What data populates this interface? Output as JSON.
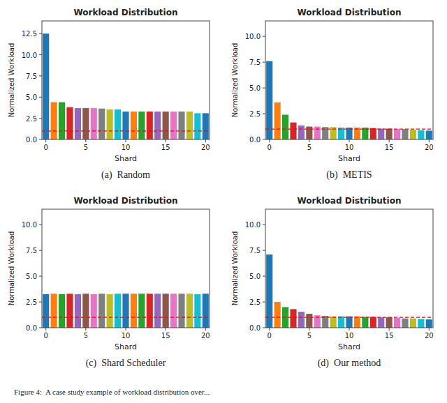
{
  "chart_data": [
    {
      "type": "bar",
      "title": "Workload Distribution",
      "x_label": "Shard",
      "y_label": "Normalized Workload",
      "subtitle": "(a)  Random",
      "categories": [
        "0",
        null,
        null,
        null,
        null,
        "5",
        null,
        null,
        null,
        null,
        "10",
        null,
        null,
        null,
        null,
        "15",
        null,
        null,
        null,
        null,
        "20"
      ],
      "values": [
        12.5,
        4.4,
        4.4,
        3.8,
        3.7,
        3.7,
        3.7,
        3.65,
        3.55,
        3.55,
        3.3,
        3.3,
        3.3,
        3.3,
        3.3,
        3.3,
        3.3,
        3.3,
        3.3,
        3.1,
        3.1
      ],
      "colors": [
        "#1f77b4",
        "#ff7f0e",
        "#2ca02c",
        "#d62728",
        "#9467bd",
        "#8c564b",
        "#e377c2",
        "#7f7f7f",
        "#bcbd22",
        "#17becf",
        "#1f77b4",
        "#ff7f0e",
        "#2ca02c",
        "#d62728",
        "#9467bd",
        "#8c564b",
        "#e377c2",
        "#7f7f7f",
        "#bcbd22",
        "#17becf",
        "#1f77b4"
      ],
      "reference_line": {
        "value": 1.0,
        "color": "#ff0000",
        "line_style": "dashed"
      },
      "ylim": [
        0,
        14.0
      ],
      "yticks": [
        {
          "value": 0.0,
          "label": "0.0"
        },
        2.5,
        {
          "value": 5.0,
          "label": "5.0"
        },
        7.5,
        {
          "value": 10.0,
          "label": "10.0"
        },
        12.5
      ]
    },
    {
      "type": "bar",
      "title": "Workload Distribution",
      "x_label": "Shard",
      "y_label": "Normalized Workload",
      "subtitle": "(b)  METIS",
      "categories": [
        "0",
        null,
        null,
        null,
        null,
        "5",
        null,
        null,
        null,
        null,
        "10",
        null,
        null,
        null,
        null,
        "15",
        null,
        null,
        null,
        null,
        "20"
      ],
      "values": [
        7.6,
        3.6,
        2.4,
        1.65,
        1.35,
        1.25,
        1.25,
        1.2,
        1.2,
        1.15,
        1.15,
        1.15,
        1.15,
        1.1,
        1.05,
        1.05,
        1.0,
        1.0,
        0.95,
        0.9,
        0.85
      ],
      "colors": [
        "#1f77b4",
        "#ff7f0e",
        "#2ca02c",
        "#d62728",
        "#9467bd",
        "#8c564b",
        "#e377c2",
        "#7f7f7f",
        "#bcbd22",
        "#17becf",
        "#1f77b4",
        "#ff7f0e",
        "#2ca02c",
        "#d62728",
        "#9467bd",
        "#8c564b",
        "#e377c2",
        "#7f7f7f",
        "#bcbd22",
        "#17becf",
        "#1f77b4"
      ],
      "reference_line": {
        "value": 1.0,
        "color": "#ff0000",
        "line_style": "dashed"
      },
      "ylim": [
        0,
        11.5
      ],
      "yticks": [
        {
          "value": 0.0,
          "label": "0.0"
        },
        2.5,
        {
          "value": 5.0,
          "label": "5.0"
        },
        7.5,
        {
          "value": 10.0,
          "label": "10.0"
        }
      ]
    },
    {
      "type": "bar",
      "title": "Workload Distribution",
      "x_label": "Shard",
      "y_label": "Normalized Workload",
      "subtitle": "(c)  Shard Scheduler",
      "categories": [
        "0",
        null,
        null,
        null,
        null,
        "5",
        null,
        null,
        null,
        null,
        "10",
        null,
        null,
        null,
        null,
        "15",
        null,
        null,
        null,
        null,
        "20"
      ],
      "values": [
        3.25,
        3.3,
        3.25,
        3.3,
        3.25,
        3.3,
        3.25,
        3.3,
        3.25,
        3.3,
        3.3,
        3.3,
        3.3,
        3.3,
        3.3,
        3.3,
        3.3,
        3.3,
        3.3,
        3.25,
        3.3
      ],
      "colors": [
        "#1f77b4",
        "#ff7f0e",
        "#2ca02c",
        "#d62728",
        "#9467bd",
        "#8c564b",
        "#e377c2",
        "#7f7f7f",
        "#bcbd22",
        "#17becf",
        "#1f77b4",
        "#ff7f0e",
        "#2ca02c",
        "#d62728",
        "#9467bd",
        "#8c564b",
        "#e377c2",
        "#7f7f7f",
        "#bcbd22",
        "#17becf",
        "#1f77b4"
      ],
      "reference_line": {
        "value": 1.0,
        "color": "#ff0000",
        "line_style": "dashed"
      },
      "ylim": [
        0,
        11.5
      ],
      "yticks": [
        {
          "value": 0.0,
          "label": "0.0"
        },
        2.5,
        {
          "value": 5.0,
          "label": "5.0"
        },
        7.5,
        {
          "value": 10.0,
          "label": "10.0"
        }
      ]
    },
    {
      "type": "bar",
      "title": "Workload Distribution",
      "x_label": "Shard",
      "y_label": "Normalized Workload",
      "subtitle": "(d)  Our method",
      "categories": [
        "0",
        null,
        null,
        null,
        null,
        "5",
        null,
        null,
        null,
        null,
        "10",
        null,
        null,
        null,
        null,
        "15",
        null,
        null,
        null,
        null,
        "20"
      ],
      "values": [
        7.1,
        2.5,
        2.0,
        1.8,
        1.55,
        1.35,
        1.2,
        1.15,
        1.1,
        1.1,
        1.1,
        1.1,
        1.05,
        1.05,
        1.0,
        1.0,
        0.95,
        0.9,
        0.9,
        0.85,
        0.8
      ],
      "colors": [
        "#1f77b4",
        "#ff7f0e",
        "#2ca02c",
        "#d62728",
        "#9467bd",
        "#8c564b",
        "#e377c2",
        "#7f7f7f",
        "#bcbd22",
        "#17becf",
        "#1f77b4",
        "#ff7f0e",
        "#2ca02c",
        "#d62728",
        "#9467bd",
        "#8c564b",
        "#e377c2",
        "#7f7f7f",
        "#bcbd22",
        "#17becf",
        "#1f77b4"
      ],
      "reference_line": {
        "value": 1.0,
        "color": "#ff0000",
        "line_style": "dashed"
      },
      "ylim": [
        0,
        11.5
      ],
      "yticks": [
        {
          "value": 0.0,
          "label": "0.0"
        },
        2.5,
        {
          "value": 5.0,
          "label": "5.0"
        },
        7.5,
        {
          "value": 10.0,
          "label": "10.0"
        }
      ]
    }
  ],
  "caption": "Figure 4:  A case study example of workload distribution over..."
}
